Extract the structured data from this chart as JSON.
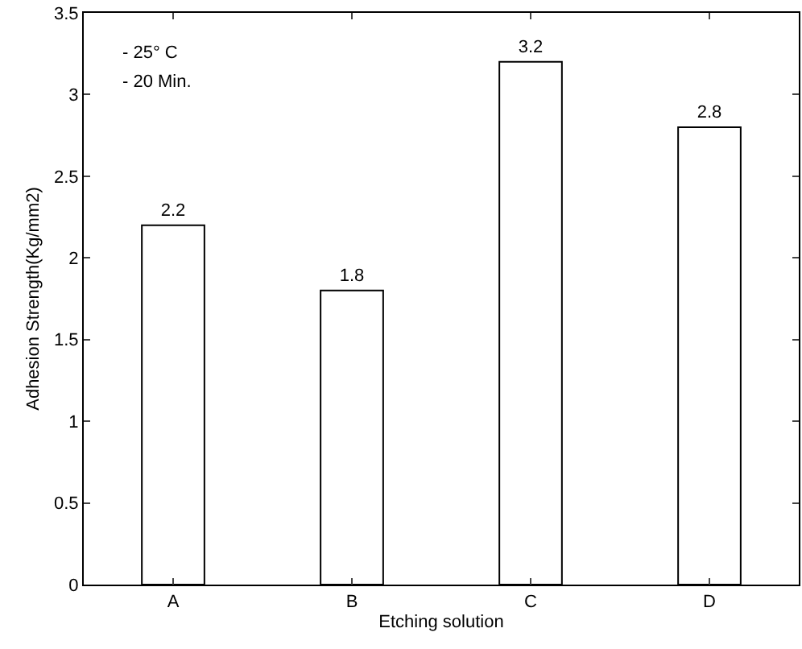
{
  "chart_data": {
    "type": "bar",
    "xlabel": "Etching solution",
    "ylabel": "Adhesion Strength(Kg/mm2)",
    "categories": [
      "A",
      "B",
      "C",
      "D"
    ],
    "values": [
      2.2,
      1.8,
      3.2,
      2.8
    ],
    "color": "#ffffff",
    "data_labels": true,
    "ylim": [
      0,
      3.5
    ],
    "yticks": [
      0,
      0.5,
      1,
      1.5,
      2,
      2.5,
      3,
      3.5
    ],
    "grid": false,
    "legend": false,
    "annotations": [
      "- 25° C",
      "- 20 Min."
    ]
  }
}
